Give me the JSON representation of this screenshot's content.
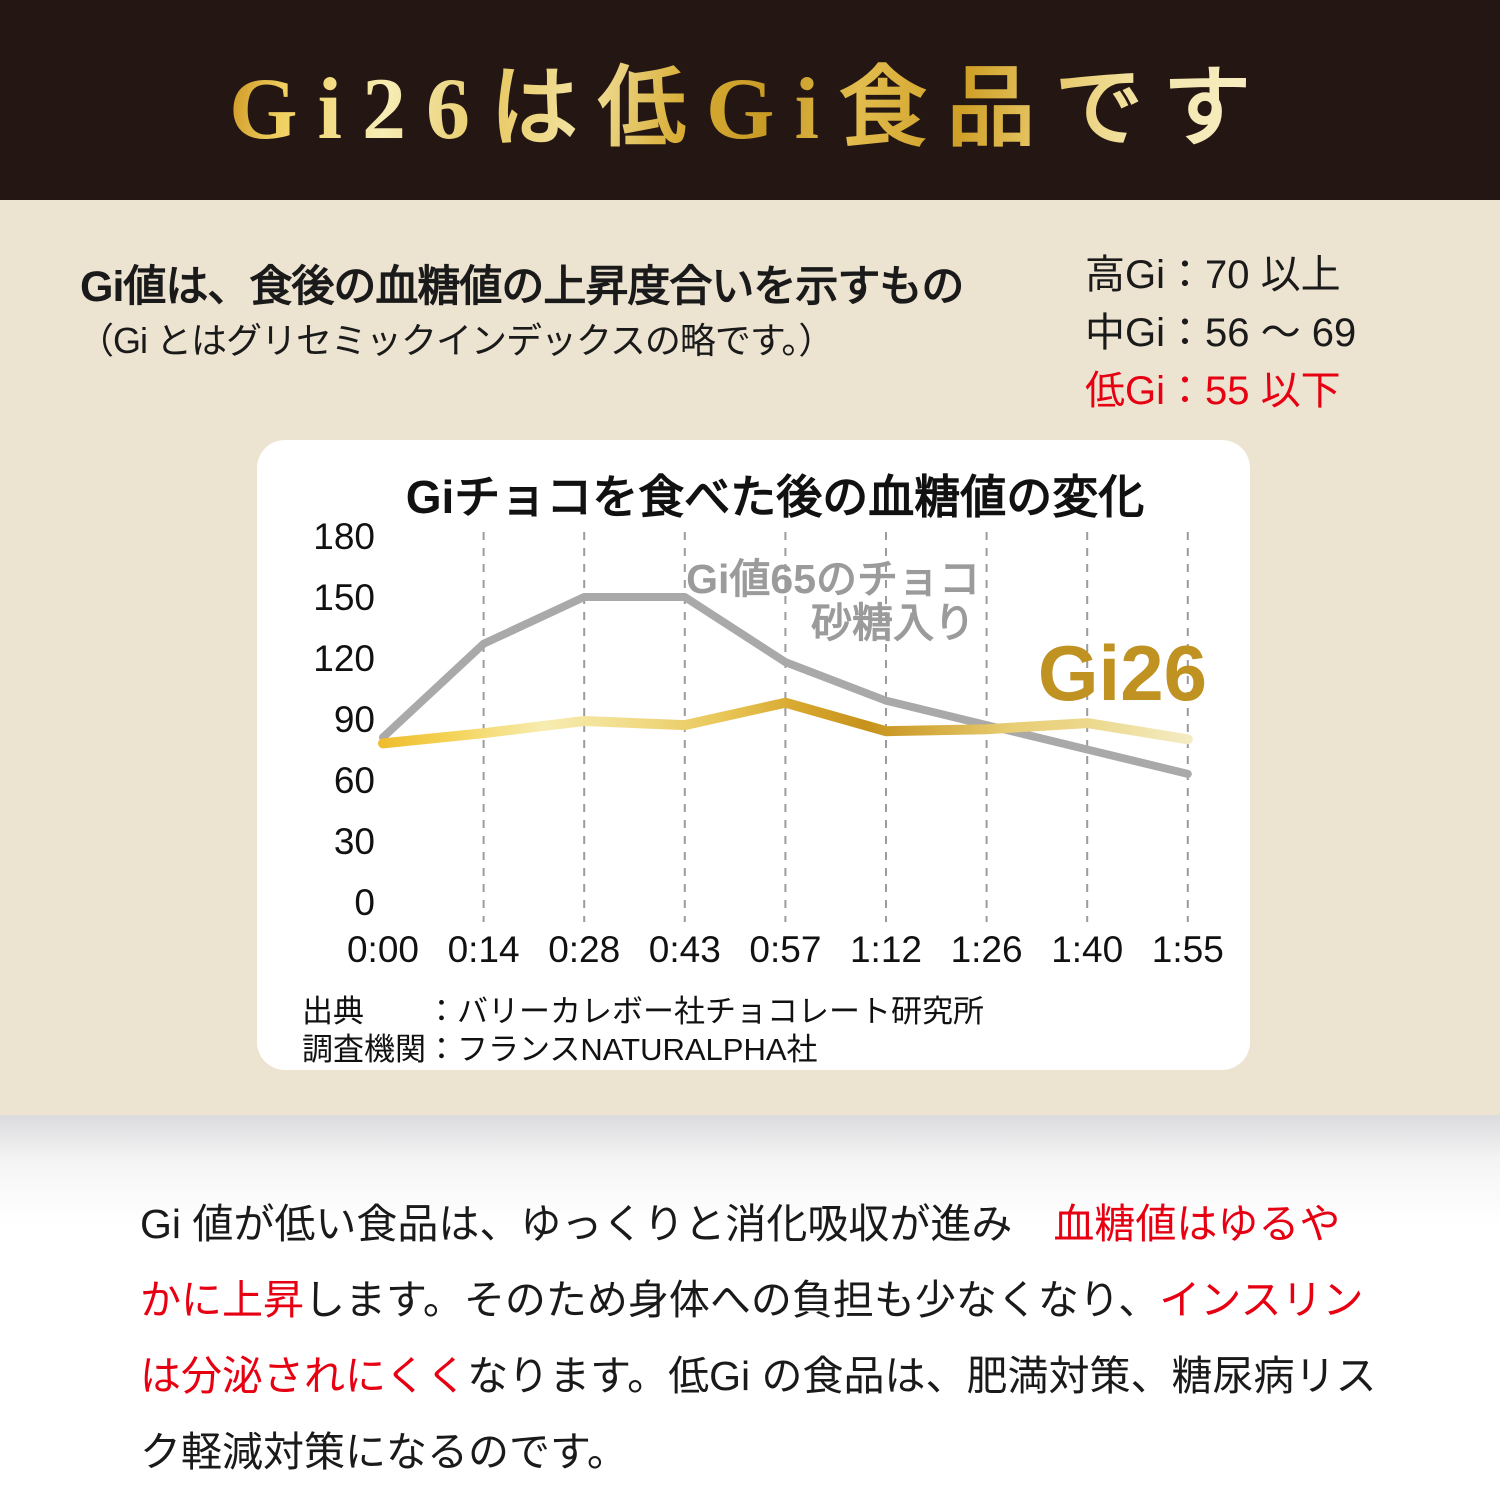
{
  "palette": {
    "header_bg": "#241713",
    "beige": "#ece3d1",
    "red": "#e60012",
    "ink": "#1a1a1a",
    "gold": "#bf9222",
    "gray_line": "#a9a9a9",
    "gray_label": "#9b9b9b"
  },
  "header": {
    "title": "Gi26は低Gi食品です"
  },
  "intro": {
    "heading": "Gi値は、食後の血糖値の上昇度合いを示すもの",
    "subheading": "（Gi とはグリセミックインデックスの略です。）",
    "gi_levels": [
      {
        "label": "高Gi：70 以上",
        "emphasis": false
      },
      {
        "label": "中Gi：56 ～ 69",
        "emphasis": false
      },
      {
        "label": "低Gi：55 以下",
        "emphasis": true
      }
    ]
  },
  "chart_data": {
    "type": "line",
    "title": "Giチョコを食べた後の血糖値の変化",
    "x": [
      "0:00",
      "0:14",
      "0:28",
      "0:43",
      "0:57",
      "1:12",
      "1:26",
      "1:40",
      "1:55"
    ],
    "yticks": [
      0,
      30,
      60,
      90,
      120,
      150,
      180
    ],
    "ylim": [
      0,
      180
    ],
    "grid": "vertical-dashed",
    "legend_position": "inline-annotations",
    "series": [
      {
        "name": "Gi値65のチョコ 砂糖入り",
        "color": "#a9a9a9",
        "values": [
          81,
          127,
          150,
          150,
          118,
          99,
          87,
          75,
          63
        ]
      },
      {
        "name": "Gi26",
        "color": "#bf9222",
        "values": [
          78,
          83,
          89,
          87,
          98,
          84,
          85,
          88,
          80
        ]
      }
    ],
    "annotations": {
      "gi65_line1": "Gi値65のチョコ",
      "gi65_line2": "砂糖入り",
      "gi26": "Gi26"
    },
    "source_line1": "出典　　：バリーカレボー社チョコレート研究所",
    "source_line2": "調査機関：フランスNATURALPHA社"
  },
  "footer": {
    "segments": [
      {
        "text": "Gi 値が低い食品は、ゆっくりと消化吸収が進み",
        "emphasis": false
      },
      {
        "text": "　血糖値はゆるやかに上昇",
        "emphasis": true
      },
      {
        "text": "します。そのため身体への負担も少なくなり、",
        "emphasis": false
      },
      {
        "text": "インスリンは分泌されにくく",
        "emphasis": true
      },
      {
        "text": "なります。低Gi の食品は、肥満対策、糖尿病リスク軽減対策になるのです。",
        "emphasis": false
      }
    ]
  }
}
